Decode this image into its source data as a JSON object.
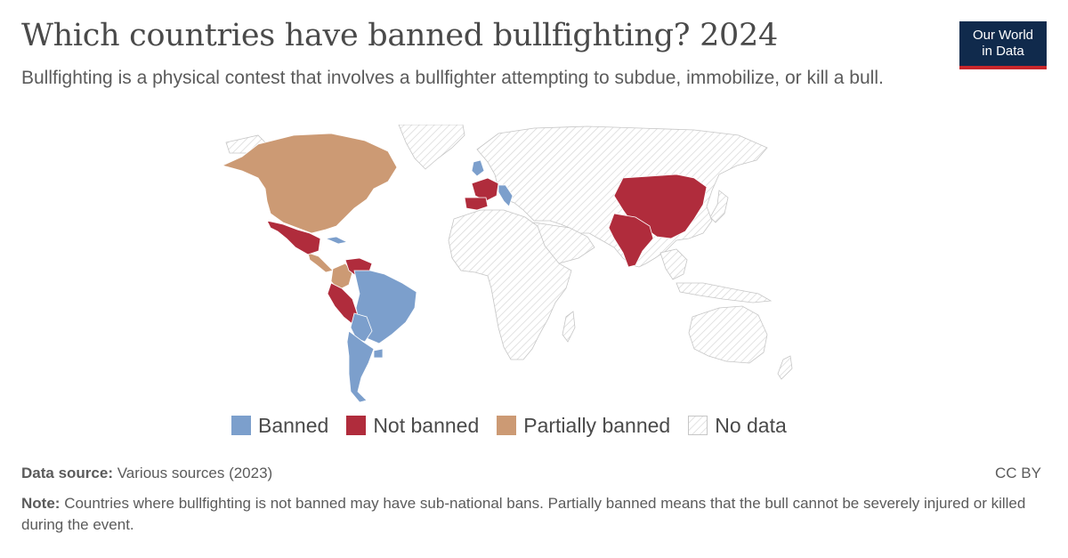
{
  "header": {
    "title": "Which countries have banned bullfighting? 2024",
    "subtitle": "Bullfighting is a physical contest that involves a bullfighter attempting to subdue, immobilize, or kill a bull.",
    "logo_line1": "Our World",
    "logo_line2": "in Data"
  },
  "colors": {
    "banned": "#7c9fcc",
    "not_banned": "#b02c3c",
    "partially_banned": "#cc9a74",
    "no_data": "#f2f2f2",
    "brand_navy": "#102a4c",
    "brand_red": "#c8262b"
  },
  "map_data": {
    "type": "choropleth",
    "categories": [
      {
        "key": "banned",
        "label": "Banned"
      },
      {
        "key": "not_banned",
        "label": "Not banned"
      },
      {
        "key": "partially_banned",
        "label": "Partially banned"
      },
      {
        "key": "no_data",
        "label": "No data"
      }
    ],
    "regions": [
      {
        "name": "North America (USA, Canada)",
        "status": "partially_banned"
      },
      {
        "name": "Mexico",
        "status": "not_banned"
      },
      {
        "name": "Central America",
        "status": "partially_banned"
      },
      {
        "name": "Cuba",
        "status": "banned"
      },
      {
        "name": "Venezuela",
        "status": "not_banned"
      },
      {
        "name": "Colombia",
        "status": "partially_banned"
      },
      {
        "name": "Peru",
        "status": "not_banned"
      },
      {
        "name": "Ecuador",
        "status": "not_banned"
      },
      {
        "name": "Brazil",
        "status": "banned"
      },
      {
        "name": "Bolivia",
        "status": "banned"
      },
      {
        "name": "Argentina",
        "status": "banned"
      },
      {
        "name": "Chile",
        "status": "banned"
      },
      {
        "name": "United Kingdom",
        "status": "banned"
      },
      {
        "name": "Italy",
        "status": "banned"
      },
      {
        "name": "France",
        "status": "not_banned"
      },
      {
        "name": "Spain",
        "status": "not_banned"
      },
      {
        "name": "Portugal",
        "status": "not_banned"
      },
      {
        "name": "China",
        "status": "not_banned"
      },
      {
        "name": "India",
        "status": "not_banned"
      },
      {
        "name": "Rest of world",
        "status": "no_data"
      }
    ]
  },
  "legend": {
    "banned": "Banned",
    "not_banned": "Not banned",
    "partially_banned": "Partially banned",
    "no_data": "No data"
  },
  "footer": {
    "source_label": "Data source:",
    "source_text": "Various sources (2023)",
    "license": "CC BY",
    "note_label": "Note:",
    "note_text": "Countries where bullfighting is not banned may have sub-national bans. Partially banned means that the bull cannot be severely injured or killed during the event."
  }
}
